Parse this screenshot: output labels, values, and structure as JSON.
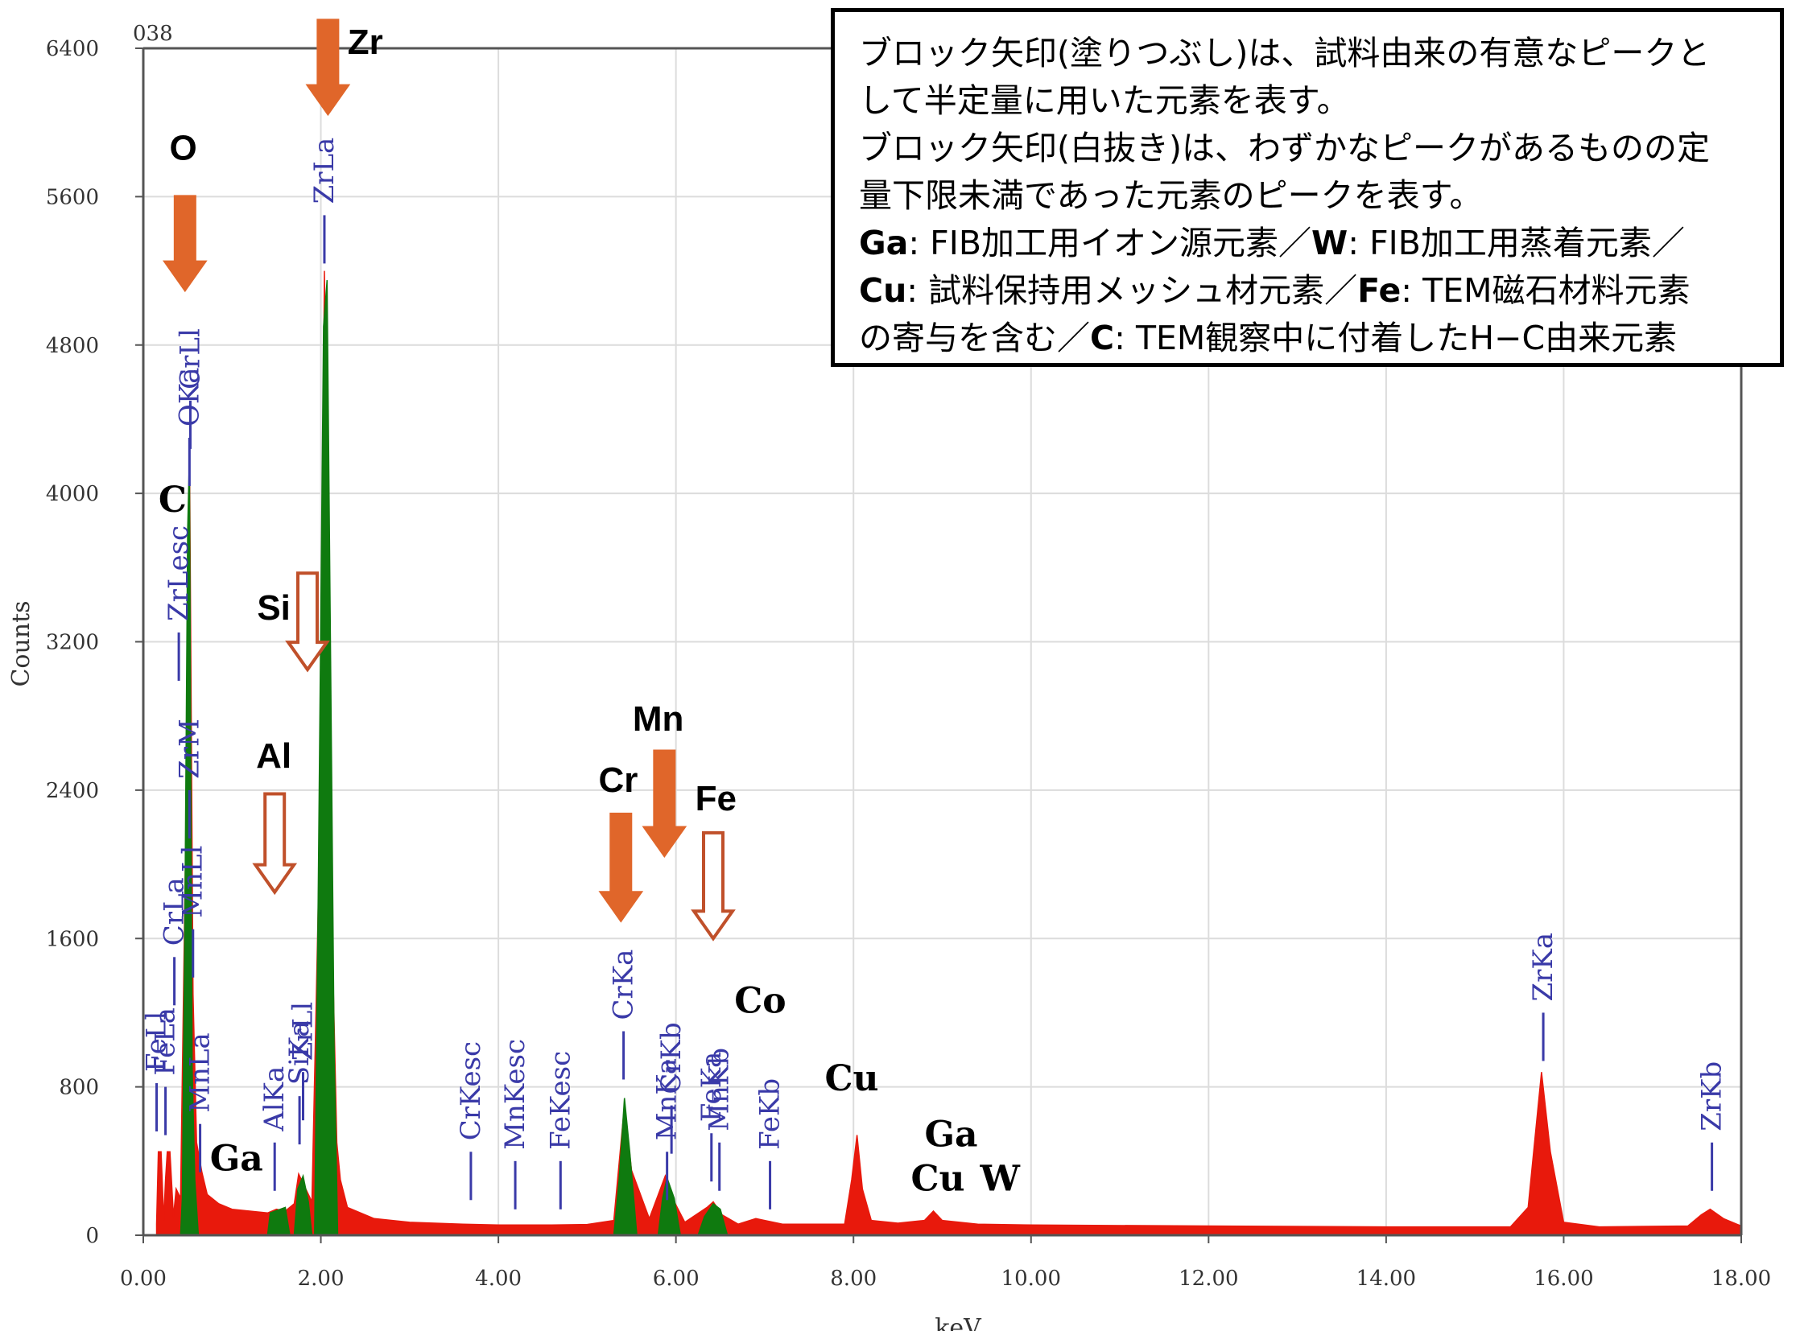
{
  "chart_data": {
    "type": "area",
    "corner_label": "038",
    "xlabel": "keV",
    "ylabel": "Counts",
    "xlim": [
      0,
      18
    ],
    "ylim": [
      0,
      6400
    ],
    "x_ticks": [
      "0.00",
      "2.00",
      "4.00",
      "6.00",
      "8.00",
      "10.00",
      "12.00",
      "14.00",
      "16.00",
      "18.00"
    ],
    "y_ticks": [
      "0",
      "800",
      "1600",
      "2400",
      "3200",
      "4000",
      "4800",
      "5600",
      "6400"
    ],
    "grid": true,
    "series": [
      {
        "color": "#e8190c",
        "points": [
          [
            0.15,
            60
          ],
          [
            0.17,
            450
          ],
          [
            0.2,
            450
          ],
          [
            0.23,
            80
          ],
          [
            0.25,
            300
          ],
          [
            0.27,
            450
          ],
          [
            0.3,
            450
          ],
          [
            0.34,
            100
          ],
          [
            0.37,
            250
          ],
          [
            0.42,
            200
          ],
          [
            0.48,
            2200
          ],
          [
            0.52,
            4300
          ],
          [
            0.56,
            1300
          ],
          [
            0.6,
            500
          ],
          [
            0.66,
            340
          ],
          [
            0.72,
            220
          ],
          [
            0.85,
            170
          ],
          [
            1.0,
            140
          ],
          [
            1.2,
            130
          ],
          [
            1.4,
            120
          ],
          [
            1.5,
            140
          ],
          [
            1.6,
            130
          ],
          [
            1.7,
            170
          ],
          [
            1.75,
            330
          ],
          [
            1.82,
            260
          ],
          [
            1.9,
            180
          ],
          [
            1.98,
            2000
          ],
          [
            2.04,
            5200
          ],
          [
            2.1,
            3000
          ],
          [
            2.14,
            1350
          ],
          [
            2.18,
            500
          ],
          [
            2.22,
            300
          ],
          [
            2.3,
            150
          ],
          [
            2.6,
            90
          ],
          [
            3.0,
            70
          ],
          [
            3.6,
            60
          ],
          [
            4.0,
            55
          ],
          [
            4.6,
            55
          ],
          [
            5.0,
            58
          ],
          [
            5.3,
            80
          ],
          [
            5.42,
            700
          ],
          [
            5.5,
            350
          ],
          [
            5.7,
            90
          ],
          [
            5.88,
            320
          ],
          [
            5.96,
            200
          ],
          [
            6.1,
            70
          ],
          [
            6.35,
            150
          ],
          [
            6.42,
            180
          ],
          [
            6.52,
            110
          ],
          [
            6.7,
            60
          ],
          [
            6.9,
            90
          ],
          [
            7.0,
            80
          ],
          [
            7.2,
            60
          ],
          [
            7.9,
            60
          ],
          [
            7.98,
            300
          ],
          [
            8.04,
            540
          ],
          [
            8.1,
            250
          ],
          [
            8.2,
            80
          ],
          [
            8.5,
            65
          ],
          [
            8.8,
            80
          ],
          [
            8.9,
            130
          ],
          [
            9.0,
            80
          ],
          [
            9.4,
            60
          ],
          [
            10.0,
            55
          ],
          [
            12.0,
            50
          ],
          [
            14.0,
            45
          ],
          [
            15.4,
            45
          ],
          [
            15.6,
            150
          ],
          [
            15.75,
            880
          ],
          [
            15.85,
            450
          ],
          [
            16.0,
            70
          ],
          [
            16.4,
            45
          ],
          [
            17.4,
            50
          ],
          [
            17.55,
            110
          ],
          [
            17.65,
            140
          ],
          [
            17.8,
            90
          ],
          [
            18.0,
            50
          ]
        ]
      },
      {
        "color": "#0f7a0f",
        "points": [
          [
            0.42,
            0
          ],
          [
            0.44,
            200
          ],
          [
            0.47,
            1800
          ],
          [
            0.5,
            3800
          ],
          [
            0.52,
            4200
          ],
          [
            0.55,
            900
          ],
          [
            0.58,
            300
          ],
          [
            0.62,
            0
          ],
          [
            1.4,
            0
          ],
          [
            1.43,
            120
          ],
          [
            1.6,
            150
          ],
          [
            1.65,
            0
          ],
          [
            1.7,
            0
          ],
          [
            1.74,
            250
          ],
          [
            1.8,
            320
          ],
          [
            1.86,
            180
          ],
          [
            1.9,
            0
          ],
          [
            1.93,
            0
          ],
          [
            1.97,
            1800
          ],
          [
            2.03,
            4900
          ],
          [
            2.07,
            5150
          ],
          [
            2.11,
            3100
          ],
          [
            2.15,
            1000
          ],
          [
            2.19,
            0
          ],
          [
            5.3,
            0
          ],
          [
            5.36,
            300
          ],
          [
            5.42,
            740
          ],
          [
            5.48,
            450
          ],
          [
            5.56,
            0
          ],
          [
            5.8,
            0
          ],
          [
            5.85,
            200
          ],
          [
            5.9,
            310
          ],
          [
            5.98,
            200
          ],
          [
            6.05,
            0
          ],
          [
            6.25,
            0
          ],
          [
            6.32,
            100
          ],
          [
            6.42,
            170
          ],
          [
            6.5,
            140
          ],
          [
            6.58,
            0
          ]
        ]
      }
    ],
    "line_markers": [
      {
        "label": "FeLl",
        "x": 0.15,
        "top": 820
      },
      {
        "label": "FeLa",
        "x": 0.25,
        "top": 800
      },
      {
        "label": "CrLa",
        "x": 0.35,
        "top": 1500
      },
      {
        "label": "ZrLesc",
        "x": 0.4,
        "top": 3250
      },
      {
        "label": "OKa",
        "x": 0.52,
        "top": 4300
      },
      {
        "label": "CrLl",
        "x": 0.53,
        "top": 4500
      },
      {
        "label": "ZrM",
        "x": 0.52,
        "top": 2400
      },
      {
        "label": "MnLl",
        "x": 0.56,
        "top": 1650
      },
      {
        "label": "MnLa",
        "x": 0.64,
        "top": 600
      },
      {
        "label": "AlKa",
        "x": 1.48,
        "top": 500
      },
      {
        "label": "SiKa",
        "x": 1.76,
        "top": 750
      },
      {
        "label": "ZrLl",
        "x": 1.8,
        "top": 880
      },
      {
        "label": "ZrLa",
        "x": 2.04,
        "top": 5500
      },
      {
        "label": "CrKesc",
        "x": 3.69,
        "top": 450
      },
      {
        "label": "MnKesc",
        "x": 4.19,
        "top": 400
      },
      {
        "label": "FeKesc",
        "x": 4.7,
        "top": 400
      },
      {
        "label": "CrKa",
        "x": 5.41,
        "top": 1100
      },
      {
        "label": "CrKb",
        "x": 5.95,
        "top": 700
      },
      {
        "label": "MnKa",
        "x": 5.9,
        "top": 450
      },
      {
        "label": "MnKb",
        "x": 6.49,
        "top": 500
      },
      {
        "label": "FeKa",
        "x": 6.4,
        "top": 550
      },
      {
        "label": "FeKb",
        "x": 7.06,
        "top": 400
      },
      {
        "label": "ZrKa",
        "x": 15.77,
        "top": 1200
      },
      {
        "label": "ZrKb",
        "x": 17.67,
        "top": 500
      }
    ],
    "element_labels": [
      {
        "text": "O",
        "x": 0.45,
        "y": 5800,
        "style": "sans"
      },
      {
        "text": "Zr",
        "x": 2.5,
        "y": 6370,
        "style": "sans"
      },
      {
        "text": "C",
        "x": 0.33,
        "y": 3900,
        "style": "serif"
      },
      {
        "text": "Si",
        "x": 1.47,
        "y": 3320,
        "style": "sans"
      },
      {
        "text": "Al",
        "x": 1.47,
        "y": 2520,
        "style": "sans"
      },
      {
        "text": "Ga",
        "x": 1.05,
        "y": 350,
        "style": "serif"
      },
      {
        "text": "Mn",
        "x": 5.8,
        "y": 2720,
        "style": "sans"
      },
      {
        "text": "Cr",
        "x": 5.35,
        "y": 2390,
        "style": "sans"
      },
      {
        "text": "Fe",
        "x": 6.45,
        "y": 2290,
        "style": "sans"
      },
      {
        "text": "Co",
        "x": 6.95,
        "y": 1200,
        "style": "serif"
      },
      {
        "text": "Cu",
        "x": 7.98,
        "y": 780,
        "style": "serif"
      },
      {
        "text": "Ga",
        "x": 9.1,
        "y": 480,
        "style": "serif"
      },
      {
        "text": "Cu",
        "x": 8.95,
        "y": 240,
        "style": "serif"
      },
      {
        "text": "W",
        "x": 9.65,
        "y": 240,
        "style": "serif"
      }
    ],
    "arrows": [
      {
        "element": "O",
        "x": 0.47,
        "y_top": 5600,
        "y_bottom": 5100,
        "filled": true
      },
      {
        "element": "Zr",
        "x": 2.08,
        "y_top": 6550,
        "y_bottom": 6050,
        "filled": true
      },
      {
        "element": "Si",
        "x": 1.85,
        "y_top": 3570,
        "y_bottom": 3050,
        "filled": false
      },
      {
        "element": "Al",
        "x": 1.48,
        "y_top": 2380,
        "y_bottom": 1850,
        "filled": false
      },
      {
        "element": "Cr",
        "x": 5.38,
        "y_top": 2270,
        "y_bottom": 1700,
        "filled": true
      },
      {
        "element": "Mn",
        "x": 5.87,
        "y_top": 2610,
        "y_bottom": 2050,
        "filled": true
      },
      {
        "element": "Fe",
        "x": 6.42,
        "y_top": 2170,
        "y_bottom": 1600,
        "filled": false
      }
    ]
  },
  "legend": {
    "line1": "ブロック矢印(塗りつぶし)は、試料由来の有意なピークと",
    "line2": "して半定量に用いた元素を表す。",
    "line3": "ブロック矢印(白抜き)は、わずかなピークがあるものの定",
    "line4": "量下限未満であった元素のピークを表す。",
    "ga_key": "Ga",
    "ga_text": ": FIB加工用イオン源元素／",
    "w_key": "W",
    "w_text": ": FIB加工用蒸着元素／",
    "cu_key": "Cu",
    "cu_text": ": 試料保持用メッシュ材元素／",
    "fe_key": "Fe",
    "fe_text": ": TEM磁石材料元素",
    "line7a": "の寄与を含む／",
    "c_key": "C",
    "c_text": ": TEM観察中に付着したH−C由来元素"
  },
  "colors": {
    "spectrum_red": "#e8190c",
    "spectrum_green": "#0f7a0f",
    "line_marker_blue": "#3a3aa8",
    "arrow_orange": "#e0662a",
    "arrow_outline": "#c0502a"
  }
}
